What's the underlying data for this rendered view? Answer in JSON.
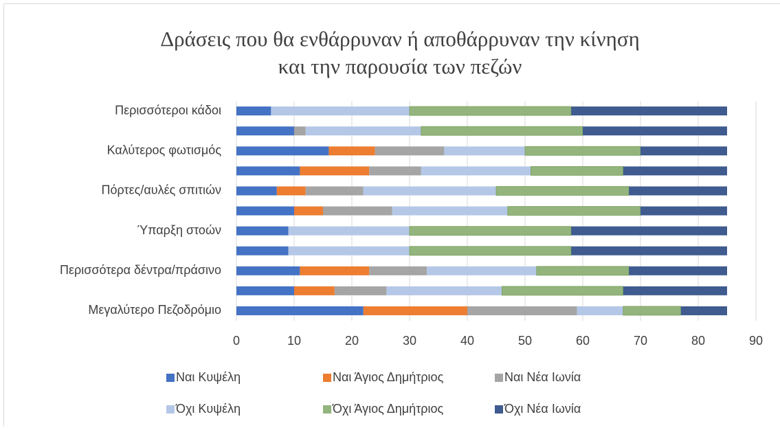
{
  "chart_data": {
    "type": "stacked_bar_horizontal",
    "title": [
      "Δράσεις που θα ενθάρρυναν ή αποθάρρυναν την κίνηση",
      "και την παρουσία των πεζών"
    ],
    "categories": [
      "Μεγαλύτερο Πεζοδρόμιο",
      null,
      "Περισσότερα δέντρα/πράσινο",
      null,
      "Ύπαρξη στοών",
      null,
      "Πόρτες/αυλές σπιτιών",
      null,
      "Καλύτερος φωτισμός",
      null,
      "Περισσότεροι κάδοι"
    ],
    "series": [
      {
        "name": "Ναι Κυψέλη",
        "color": "#4472c4",
        "values": [
          22,
          10,
          11,
          9,
          9,
          10,
          7,
          11,
          16,
          10,
          6
        ]
      },
      {
        "name": "Ναι Άγιος Δημήτριος",
        "color": "#ed7d31",
        "values": [
          18,
          7,
          12,
          0,
          0,
          5,
          5,
          12,
          8,
          0,
          0
        ]
      },
      {
        "name": "Ναι Νέα Ιωνία",
        "color": "#a5a5a5",
        "values": [
          19,
          9,
          10,
          0,
          0,
          12,
          10,
          9,
          12,
          2,
          0
        ]
      },
      {
        "name": "Όχι Κυψέλη",
        "color": "#b4c7e7",
        "values": [
          8,
          20,
          19,
          21,
          21,
          20,
          23,
          19,
          14,
          20,
          24
        ]
      },
      {
        "name": "Όχι Άγιος Δημήτριος",
        "color": "#93b47d",
        "values": [
          10,
          21,
          16,
          28,
          28,
          23,
          23,
          16,
          20,
          28,
          28
        ]
      },
      {
        "name": "Όχι Νέα Ιωνία",
        "color": "#3f5b8f",
        "values": [
          8,
          18,
          17,
          27,
          27,
          15,
          17,
          18,
          15,
          25,
          27
        ]
      }
    ],
    "xlim": [
      0,
      90
    ],
    "xticks": [
      0,
      10,
      20,
      30,
      40,
      50,
      60,
      70,
      80,
      90
    ],
    "grid": true,
    "legend": "bottom"
  }
}
